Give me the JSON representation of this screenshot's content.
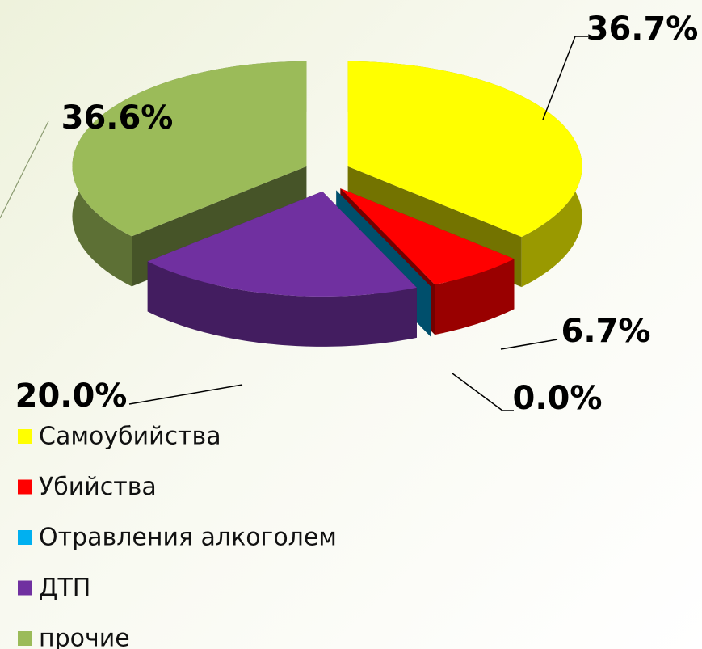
{
  "chart_data": {
    "type": "pie3d",
    "categories": [
      "Самоубийства",
      "Убийства",
      "Отравления алкоголем",
      "ДТП",
      "прочие"
    ],
    "values": [
      36.7,
      6.7,
      0.0,
      20.0,
      36.6
    ],
    "value_labels": [
      "36.7%",
      "6.7%",
      "0.0%",
      "20.0%",
      "36.6%"
    ],
    "colors": [
      "#ffff00",
      "#ff0000",
      "#00b0f0",
      "#7030a0",
      "#9bbb59"
    ],
    "legend": "bottom-left"
  }
}
